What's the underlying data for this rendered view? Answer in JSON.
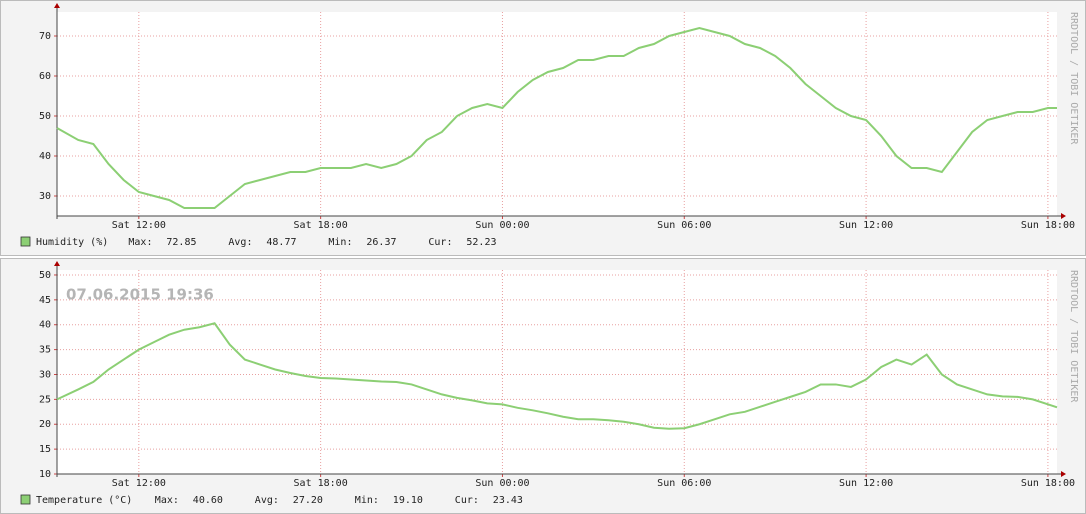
{
  "chart_data": [
    {
      "type": "line",
      "watermark": "RRDTOOL / TOBI OETIKER",
      "x": [
        9.3,
        10,
        10.5,
        11,
        11.5,
        12,
        12.5,
        13,
        13.5,
        14,
        14.5,
        15,
        15.5,
        16,
        16.5,
        17,
        17.5,
        18,
        18.5,
        19,
        19.5,
        20,
        20.5,
        21,
        21.5,
        22,
        22.5,
        23,
        23.5,
        24,
        24.5,
        25,
        25.5,
        26,
        26.5,
        27,
        27.5,
        28,
        28.5,
        29,
        29.5,
        30,
        30.5,
        31,
        31.5,
        32,
        32.5,
        33,
        33.5,
        34,
        34.5,
        35,
        35.5,
        36,
        36.5,
        37,
        37.5,
        38,
        38.5,
        39,
        39.5,
        40,
        40.5,
        41,
        41.5,
        42,
        42.3
      ],
      "xlim": [
        9.3,
        42.3
      ],
      "xticks": [
        {
          "value": 12,
          "label": "Sat 12:00"
        },
        {
          "value": 18,
          "label": "Sat 18:00"
        },
        {
          "value": 24,
          "label": "Sun 00:00"
        },
        {
          "value": 30,
          "label": "Sun 06:00"
        },
        {
          "value": 36,
          "label": "Sun 12:00"
        },
        {
          "value": 42,
          "label": "Sun 18:00"
        }
      ],
      "ylim": [
        25,
        76
      ],
      "yticks": [
        30,
        40,
        50,
        60,
        70
      ],
      "grid": true,
      "series": [
        {
          "name": "Humidity (%)",
          "color": "#8ccf74",
          "values": [
            47,
            44,
            43,
            38,
            34,
            31,
            30,
            29,
            27,
            27,
            27,
            30,
            33,
            34,
            35,
            36,
            36,
            37,
            37,
            37,
            38,
            37,
            38,
            40,
            44,
            46,
            50,
            52,
            53,
            52,
            56,
            59,
            61,
            62,
            64,
            64,
            65,
            65,
            67,
            68,
            70,
            71,
            72,
            71,
            70,
            68,
            67,
            65,
            62,
            58,
            55,
            52,
            50,
            49,
            45,
            40,
            37,
            37,
            36,
            41,
            46,
            49,
            50,
            51,
            51,
            52,
            52
          ]
        }
      ],
      "stats": [
        {
          "label": "Max:",
          "value": "72.85"
        },
        {
          "label": "Avg:",
          "value": "48.77"
        },
        {
          "label": "Min:",
          "value": "26.37"
        },
        {
          "label": "Cur:",
          "value": "52.23"
        }
      ]
    },
    {
      "type": "line",
      "watermark": "RRDTOOL / TOBI OETIKER",
      "annotation": "07.06.2015 19:36",
      "x": [
        9.3,
        10,
        10.5,
        11,
        11.5,
        12,
        12.5,
        13,
        13.5,
        14,
        14.5,
        15,
        15.5,
        16,
        16.5,
        17,
        17.5,
        18,
        18.5,
        19,
        19.5,
        20,
        20.5,
        21,
        21.5,
        22,
        22.5,
        23,
        23.5,
        24,
        24.5,
        25,
        25.5,
        26,
        26.5,
        27,
        27.5,
        28,
        28.5,
        29,
        29.5,
        30,
        30.5,
        31,
        31.5,
        32,
        32.5,
        33,
        33.5,
        34,
        34.5,
        35,
        35.5,
        36,
        36.5,
        37,
        37.5,
        38,
        38.5,
        39,
        39.5,
        40,
        40.5,
        41,
        41.5,
        42,
        42.3
      ],
      "xlim": [
        9.3,
        42.3
      ],
      "xticks": [
        {
          "value": 12,
          "label": "Sat 12:00"
        },
        {
          "value": 18,
          "label": "Sat 18:00"
        },
        {
          "value": 24,
          "label": "Sun 00:00"
        },
        {
          "value": 30,
          "label": "Sun 06:00"
        },
        {
          "value": 36,
          "label": "Sun 12:00"
        },
        {
          "value": 42,
          "label": "Sun 18:00"
        }
      ],
      "ylim": [
        10,
        51
      ],
      "yticks": [
        10,
        15,
        20,
        25,
        30,
        35,
        40,
        45,
        50
      ],
      "grid": true,
      "series": [
        {
          "name": "Temperature (°C)",
          "color": "#8ccf74",
          "values": [
            25,
            27,
            28.5,
            31,
            33,
            35,
            36.5,
            38,
            39,
            39.5,
            40.3,
            36,
            33,
            32,
            31,
            30.3,
            29.7,
            29.3,
            29.2,
            29,
            28.8,
            28.6,
            28.5,
            28,
            27,
            26,
            25.3,
            24.8,
            24.2,
            24,
            23.3,
            22.8,
            22.2,
            21.5,
            21,
            21,
            20.8,
            20.5,
            20,
            19.3,
            19.1,
            19.2,
            20,
            21,
            22,
            22.5,
            23.5,
            24.5,
            25.5,
            26.5,
            28,
            28,
            27.5,
            29,
            31.5,
            33,
            32,
            34,
            30,
            28,
            27,
            26,
            25.6,
            25.5,
            25,
            24,
            23.4
          ]
        }
      ],
      "stats": [
        {
          "label": "Max:",
          "value": "40.60"
        },
        {
          "label": "Avg:",
          "value": "27.20"
        },
        {
          "label": "Min:",
          "value": "19.10"
        },
        {
          "label": "Cur:",
          "value": "23.43"
        }
      ]
    }
  ]
}
